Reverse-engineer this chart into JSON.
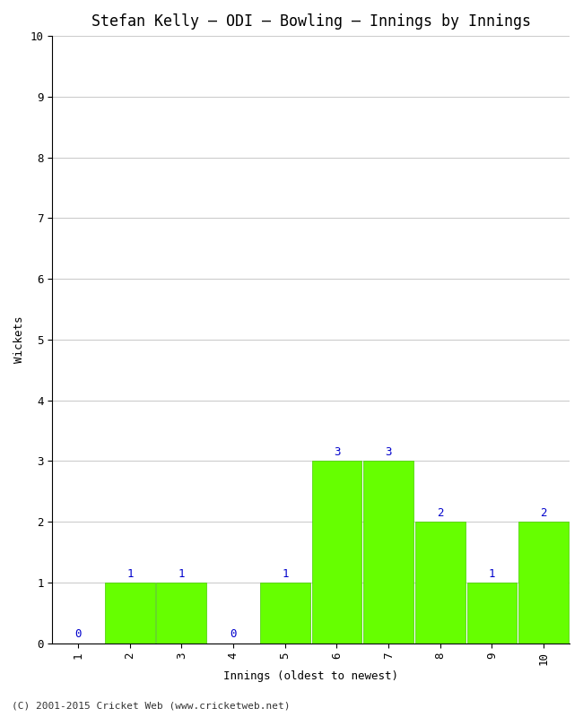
{
  "title": "Stefan Kelly – ODI – Bowling – Innings by Innings",
  "xlabel": "Innings (oldest to newest)",
  "ylabel": "Wickets",
  "innings": [
    1,
    2,
    3,
    4,
    5,
    6,
    7,
    8,
    9,
    10
  ],
  "wickets": [
    0,
    1,
    1,
    0,
    1,
    3,
    3,
    2,
    1,
    2
  ],
  "bar_color": "#66ff00",
  "bar_edge_color": "#44cc00",
  "annotation_color": "#0000cc",
  "ylim": [
    0,
    10
  ],
  "yticks": [
    0,
    1,
    2,
    3,
    4,
    5,
    6,
    7,
    8,
    9,
    10
  ],
  "bg_color": "#ffffff",
  "grid_color": "#cccccc",
  "title_fontsize": 12,
  "axis_label_fontsize": 9,
  "tick_fontsize": 9,
  "annotation_fontsize": 9,
  "bar_width": 0.97,
  "footer_text": "(C) 2001-2015 Cricket Web (www.cricketweb.net)",
  "footer_fontsize": 8
}
